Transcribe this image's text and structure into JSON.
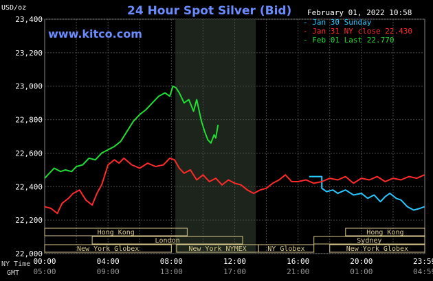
{
  "header": {
    "unit": "USD/oz",
    "title": "24 Hour Spot Silver (Bid)",
    "site": "www.kitco.com",
    "datetime": "February 01, 2022 10:58"
  },
  "legend": [
    {
      "label": "Jan 30 Sunday",
      "color": "#29c8ff"
    },
    {
      "label": "Jan 31 NY close 22.430",
      "color": "#ff2a2a"
    },
    {
      "label": "Feb 01 Last 22.770",
      "color": "#22dd33"
    }
  ],
  "colors": {
    "axis_text": "#ffffff",
    "grid": "#4a4a4a",
    "session_box": "#d8c98a",
    "shaded_band": "#1c241c",
    "title": "#6a8cff"
  },
  "time_labels": {
    "ny_label": "NY Time",
    "gmt_label": "GMT"
  },
  "sessions": [
    {
      "row": 0,
      "label": "Hong Kong",
      "start": 0,
      "end": 9
    },
    {
      "row": 1,
      "label": "London",
      "start": 3,
      "end": 12.5
    },
    {
      "row": 2,
      "label": "New York Globex",
      "start": 0,
      "end": 8
    },
    {
      "row": 2,
      "label": "New York NYMEX",
      "start": 8.33,
      "end": 13.5
    },
    {
      "row": 2,
      "label": "NY Globex",
      "start": 13.5,
      "end": 17
    },
    {
      "row": 0,
      "label": "Hong Kong",
      "start": 19,
      "end": 24
    },
    {
      "row": 1,
      "label": "Sydney",
      "start": 17,
      "end": 24
    },
    {
      "row": 2,
      "label": "New York Globex",
      "start": 18,
      "end": 24
    }
  ],
  "chart_data": {
    "type": "line",
    "title": "24 Hour Spot Silver (Bid)",
    "ylabel": "USD/oz",
    "ylim": [
      22.0,
      23.4
    ],
    "xlim": [
      0,
      24
    ],
    "x_unit": "hours (NY Time)",
    "y_ticks": [
      "22,000",
      "22,200",
      "22,400",
      "22,600",
      "22,800",
      "23,000",
      "23,200",
      "23,400"
    ],
    "x_ticks_ny": [
      "00:00",
      "04:00",
      "08:00",
      "12:00",
      "16:00",
      "20:00",
      "23:59"
    ],
    "x_ticks_gmt": [
      "05:00",
      "09:00",
      "13:00",
      "17:00",
      "21:00",
      "01:00",
      "04:59"
    ],
    "x_tick_hours": [
      0,
      4,
      8,
      12,
      16,
      20,
      23.98
    ],
    "grid": true,
    "shaded_region": [
      8.25,
      13.33
    ],
    "series": [
      {
        "name": "Jan 30 Sunday",
        "color": "#29c8ff",
        "x": [
          16.7,
          17.5,
          17.5,
          17.8,
          18.2,
          18.5,
          19.0,
          19.5,
          20.0,
          20.4,
          20.8,
          21.2,
          21.5,
          21.8,
          22.2,
          22.5,
          22.9,
          23.3,
          23.7,
          23.98
        ],
        "y": [
          22.46,
          22.46,
          22.39,
          22.37,
          22.38,
          22.36,
          22.38,
          22.35,
          22.36,
          22.33,
          22.35,
          22.31,
          22.34,
          22.36,
          22.33,
          22.32,
          22.28,
          22.26,
          22.27,
          22.28
        ]
      },
      {
        "name": "Jan 31 NY close 22.430",
        "color": "#ff2a2a",
        "x": [
          0,
          0.4,
          0.8,
          1.1,
          1.5,
          1.8,
          2.2,
          2.6,
          3.0,
          3.3,
          3.6,
          4.0,
          4.4,
          4.7,
          5.0,
          5.5,
          6.0,
          6.5,
          7.0,
          7.5,
          7.9,
          8.2,
          8.5,
          8.8,
          9.2,
          9.6,
          10.0,
          10.4,
          10.8,
          11.2,
          11.6,
          12.0,
          12.4,
          12.8,
          13.2,
          13.6,
          14.0,
          14.4,
          14.8,
          15.2,
          15.6,
          16.0,
          16.5,
          17.0,
          17.5,
          18.0,
          18.5,
          19.0,
          19.5,
          20.0,
          20.5,
          21.0,
          21.5,
          22.0,
          22.5,
          23.0,
          23.5,
          23.98
        ],
        "y": [
          22.28,
          22.27,
          22.24,
          22.3,
          22.33,
          22.36,
          22.38,
          22.32,
          22.29,
          22.36,
          22.41,
          22.53,
          22.56,
          22.54,
          22.57,
          22.53,
          22.51,
          22.54,
          22.52,
          22.53,
          22.57,
          22.56,
          22.51,
          22.48,
          22.5,
          22.44,
          22.47,
          22.43,
          22.45,
          22.41,
          22.44,
          22.42,
          22.41,
          22.38,
          22.36,
          22.38,
          22.39,
          22.42,
          22.44,
          22.47,
          22.43,
          22.43,
          22.44,
          22.42,
          22.43,
          22.45,
          22.44,
          22.46,
          22.42,
          22.45,
          22.44,
          22.46,
          22.43,
          22.45,
          22.44,
          22.46,
          22.45,
          22.47
        ]
      },
      {
        "name": "Feb 01 Last 22.770",
        "color": "#22dd33",
        "x": [
          0,
          0.3,
          0.6,
          1.0,
          1.3,
          1.7,
          2.0,
          2.4,
          2.8,
          3.2,
          3.6,
          4.0,
          4.4,
          4.8,
          5.2,
          5.6,
          6.0,
          6.4,
          6.8,
          7.2,
          7.6,
          7.9,
          8.1,
          8.3,
          8.5,
          8.8,
          9.1,
          9.4,
          9.6,
          9.9,
          10.1,
          10.3,
          10.5,
          10.7,
          10.8,
          10.95
        ],
        "y": [
          22.45,
          22.48,
          22.51,
          22.49,
          22.5,
          22.49,
          22.52,
          22.53,
          22.57,
          22.56,
          22.6,
          22.62,
          22.64,
          22.67,
          22.73,
          22.79,
          22.83,
          22.86,
          22.9,
          22.94,
          22.96,
          22.94,
          23.0,
          22.99,
          22.96,
          22.9,
          22.92,
          22.85,
          22.92,
          22.79,
          22.73,
          22.68,
          22.66,
          22.71,
          22.69,
          22.77
        ]
      }
    ]
  }
}
